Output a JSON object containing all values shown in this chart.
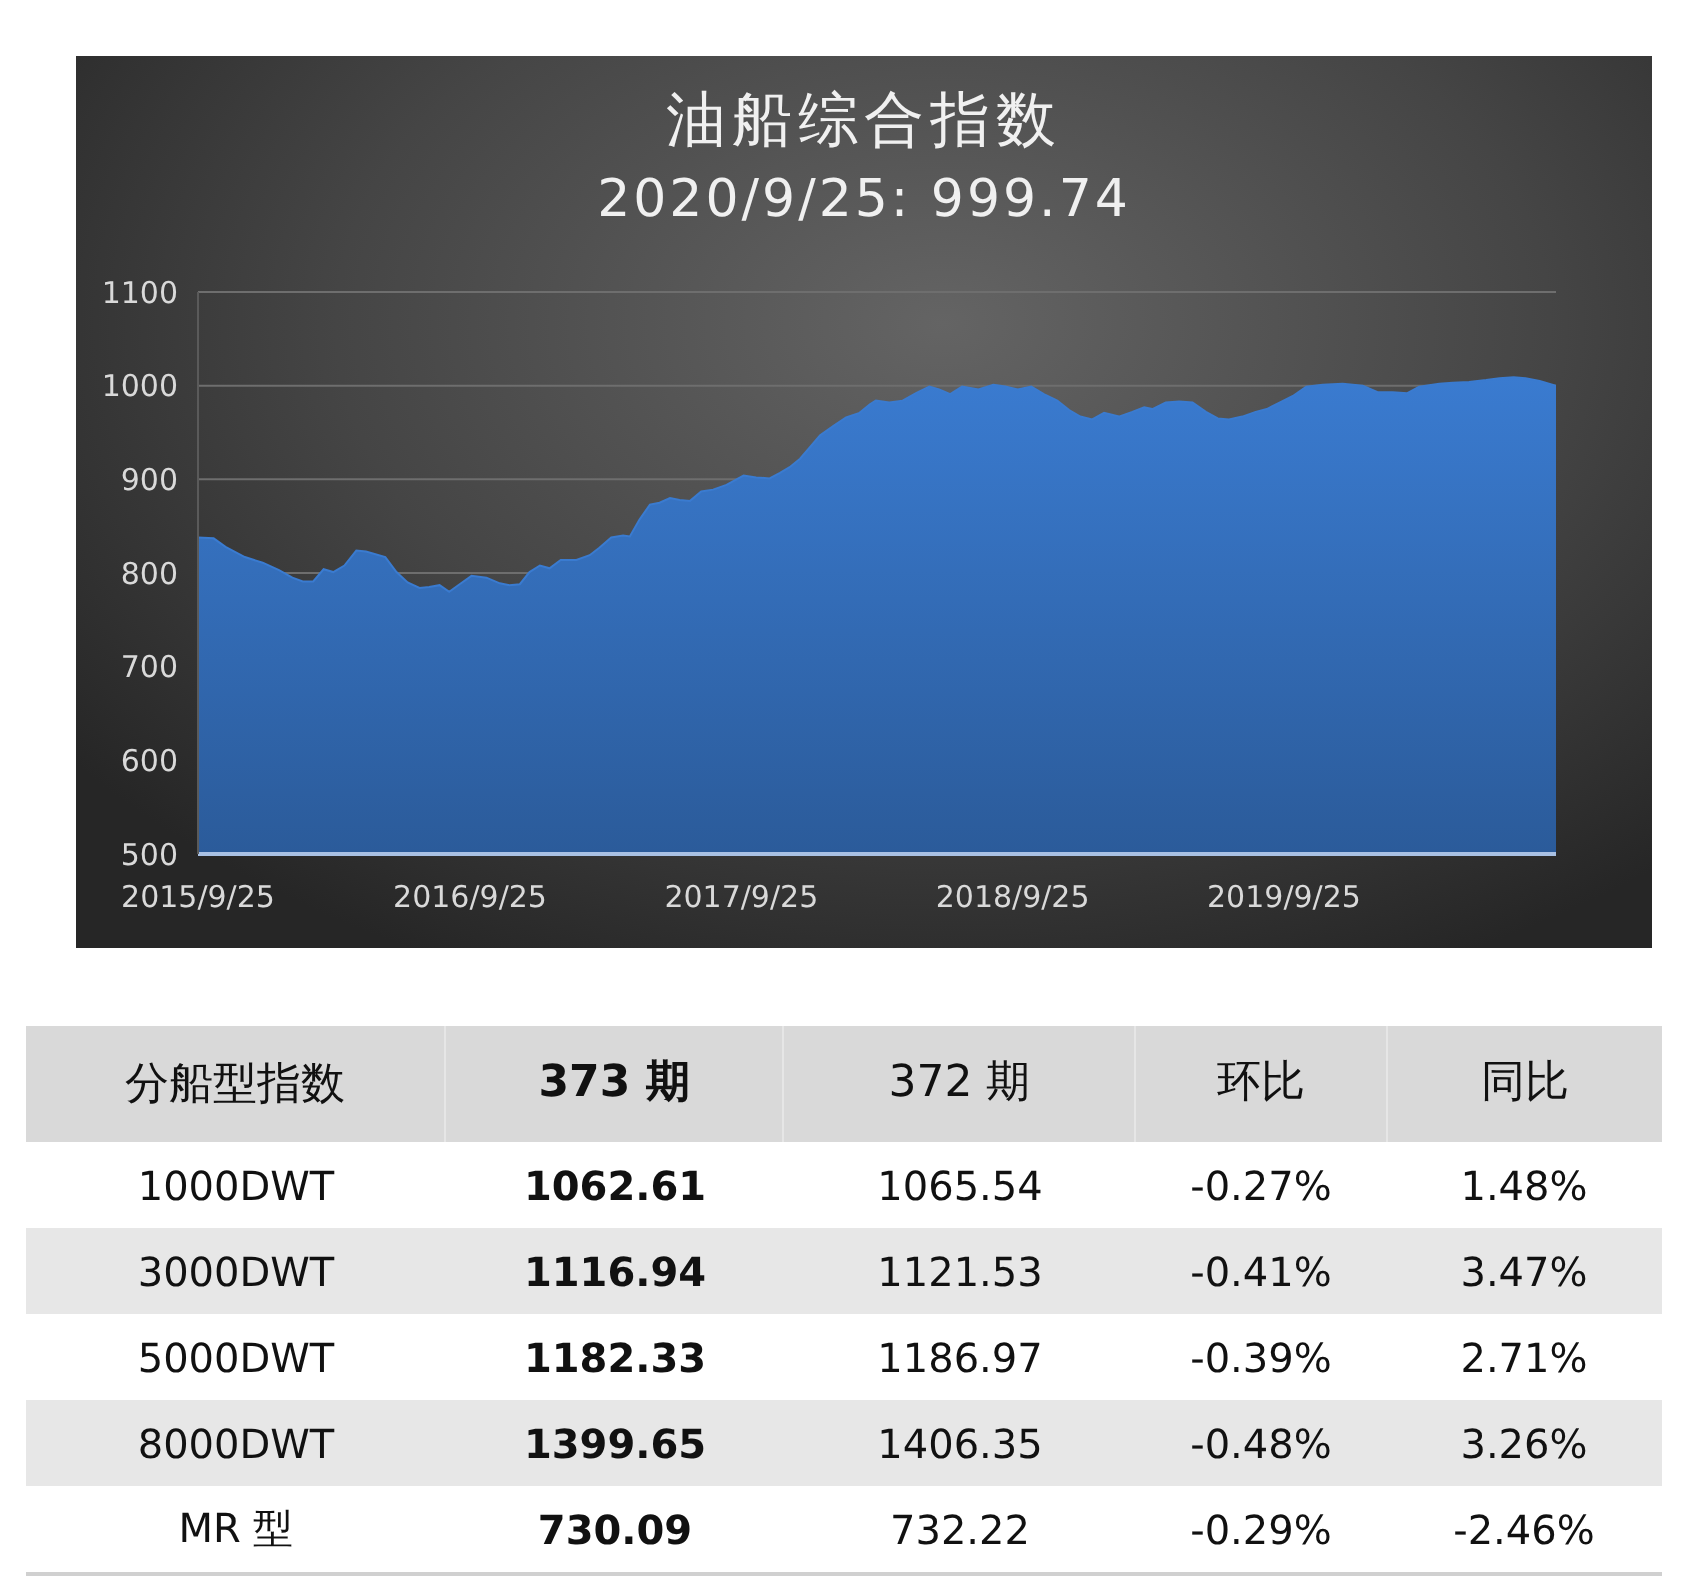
{
  "chart_data": [
    {
      "type": "area",
      "title": "油船综合指数",
      "subtitle": "2020/9/25: 999.74",
      "color": "#3a7bd0",
      "grid": "y",
      "xlim": [
        "2015-09-25",
        "2020-09-25"
      ],
      "xticks": [
        {
          "value": "2015-09-25",
          "label": "2015/9/25"
        },
        {
          "value": "2016-09-25",
          "label": "2016/9/25"
        },
        {
          "value": "2017-09-25",
          "label": "2017/9/25"
        },
        {
          "value": "2018-09-25",
          "label": "2018/9/25"
        },
        {
          "value": "2019-09-25",
          "label": "2019/9/25"
        }
      ],
      "ylim": [
        500,
        1100
      ],
      "yticks": [
        500,
        600,
        700,
        800,
        900,
        1000,
        1100
      ],
      "x": [
        "2015-09-25",
        "2015-10-16",
        "2015-11-01",
        "2015-11-27",
        "2015-12-21",
        "2016-01-12",
        "2016-01-30",
        "2016-02-13",
        "2016-02-27",
        "2016-03-12",
        "2016-03-25",
        "2016-04-09",
        "2016-04-25",
        "2016-05-08",
        "2016-06-03",
        "2016-06-18",
        "2016-07-03",
        "2016-07-19",
        "2016-08-01",
        "2016-08-15",
        "2016-08-28",
        "2016-09-11",
        "2016-09-27",
        "2016-10-17",
        "2016-11-04",
        "2016-11-17",
        "2016-12-01",
        "2016-12-14",
        "2016-12-28",
        "2017-01-10",
        "2017-01-25",
        "2017-02-15",
        "2017-03-05",
        "2017-03-18",
        "2017-04-03",
        "2017-04-19",
        "2017-04-28",
        "2017-05-11",
        "2017-05-25",
        "2017-06-07",
        "2017-06-21",
        "2017-07-04",
        "2017-07-18",
        "2017-08-02",
        "2017-08-18",
        "2017-09-05",
        "2017-09-28",
        "2017-10-15",
        "2017-11-02",
        "2017-11-16",
        "2017-11-29",
        "2017-12-13",
        "2017-12-26",
        "2018-01-09",
        "2018-01-27",
        "2018-02-13",
        "2018-03-03",
        "2018-03-17",
        "2018-03-25",
        "2018-04-12",
        "2018-04-30",
        "2018-05-18",
        "2018-06-05",
        "2018-06-18",
        "2018-07-03",
        "2018-07-19",
        "2018-08-10",
        "2018-08-30",
        "2018-09-15",
        "2018-10-02",
        "2018-10-20",
        "2018-11-06",
        "2018-11-24",
        "2018-12-10",
        "2018-12-25",
        "2019-01-10",
        "2019-01-26",
        "2019-02-15",
        "2019-03-05",
        "2019-03-21",
        "2019-04-01",
        "2019-04-19",
        "2019-05-07",
        "2019-05-25",
        "2019-06-12",
        "2019-06-28",
        "2019-07-13",
        "2019-07-31",
        "2019-08-18",
        "2019-09-02",
        "2019-09-19",
        "2019-10-07",
        "2019-10-25",
        "2019-11-16",
        "2019-12-13",
        "2020-01-09",
        "2020-01-29",
        "2020-02-18",
        "2020-03-09",
        "2020-03-25",
        "2020-04-21",
        "2020-05-09",
        "2020-05-31",
        "2020-06-23",
        "2020-07-11",
        "2020-07-30",
        "2020-08-15",
        "2020-09-03",
        "2020-09-25"
      ],
      "values": [
        838,
        837,
        828,
        817,
        811,
        803,
        795,
        791,
        791,
        804,
        801,
        808,
        824,
        823,
        817,
        801,
        790,
        784,
        785,
        787,
        780,
        788,
        797,
        795,
        789,
        787,
        788,
        801,
        808,
        805,
        814,
        814,
        819,
        827,
        838,
        840,
        839,
        857,
        873,
        875,
        880,
        878,
        877,
        887,
        889,
        894,
        904,
        902,
        901,
        907,
        913,
        922,
        934,
        947,
        957,
        966,
        971,
        980,
        984,
        982,
        984,
        992,
        999,
        996,
        991,
        999,
        996,
        1001,
        999,
        996,
        999,
        991,
        984,
        974,
        967,
        964,
        971,
        967,
        972,
        977,
        975,
        982,
        983,
        982,
        972,
        965,
        964,
        967,
        972,
        975,
        982,
        989,
        999,
        1001,
        1002,
        1000,
        993,
        993,
        992,
        999,
        1002,
        1003,
        1004,
        1006,
        1008,
        1009,
        1008,
        1005,
        999.74
      ]
    },
    {
      "type": "other",
      "ylabel": "分船型指数",
      "categories": [
        "373 期",
        "372 期",
        "环比",
        "同比"
      ],
      "y_categories": [
        "1000DWT",
        "3000DWT",
        "5000DWT",
        "8000DWT",
        "MR 型"
      ],
      "cell_labels": [
        [
          "1062.61",
          "1065.54",
          "-0.27%",
          "1.48%"
        ],
        [
          "1116.94",
          "1121.53",
          "-0.41%",
          "3.47%"
        ],
        [
          "1182.33",
          "1186.97",
          "-0.39%",
          "2.71%"
        ],
        [
          "1399.65",
          "1406.35",
          "-0.48%",
          "3.26%"
        ],
        [
          "730.09",
          "732.22",
          "-0.29%",
          "-2.46%"
        ]
      ]
    }
  ]
}
